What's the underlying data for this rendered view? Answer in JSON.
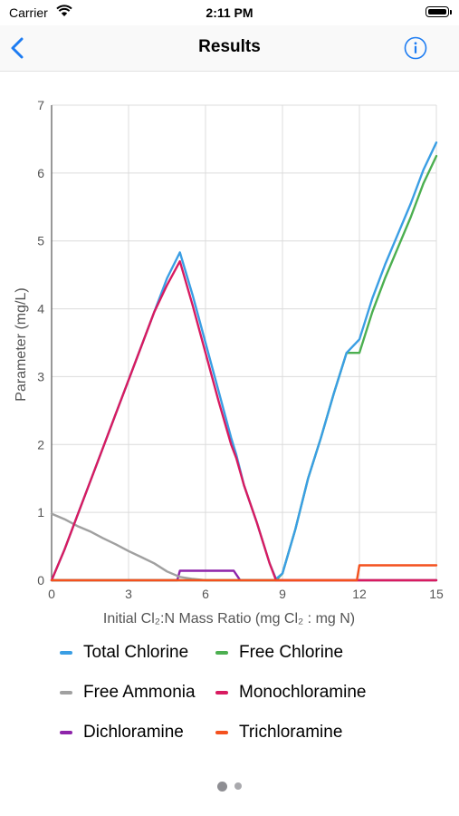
{
  "status_bar": {
    "carrier": "Carrier",
    "time": "2:11 PM"
  },
  "nav": {
    "title": "Results",
    "back_icon": "chevron-left-icon",
    "info_icon": "info-circle-icon",
    "accent": "#1d7cf2"
  },
  "chart_data": {
    "type": "line",
    "title": "",
    "xlabel": "Initial Cl₂:N Mass Ratio (mg Cl₂ : mg N)",
    "ylabel": "Parameter (mg/L)",
    "xlim": [
      0,
      15
    ],
    "ylim": [
      0,
      7
    ],
    "xticks": [
      "0",
      "3",
      "6",
      "9",
      "12",
      "15"
    ],
    "yticks": [
      "0",
      "1",
      "2",
      "3",
      "4",
      "5",
      "6",
      "7"
    ],
    "grid": true,
    "legend": "bottom",
    "series": [
      {
        "name": "Total Chlorine",
        "color": "#3a9ee4",
        "x": [
          0,
          0.5,
          1,
          1.5,
          2,
          2.5,
          3,
          3.5,
          4,
          4.5,
          5,
          5.5,
          6,
          6.5,
          7,
          7.2,
          7.5,
          8,
          8.5,
          8.75,
          9,
          9.5,
          10,
          10.5,
          11,
          11.5,
          12,
          12.5,
          13,
          13.5,
          14,
          14.5,
          15
        ],
        "y": [
          0,
          0.45,
          0.95,
          1.45,
          1.95,
          2.45,
          2.95,
          3.45,
          3.95,
          4.45,
          4.83,
          4.2,
          3.5,
          2.8,
          2.1,
          1.85,
          1.4,
          0.85,
          0.25,
          0.02,
          0.1,
          0.75,
          1.5,
          2.1,
          2.75,
          3.35,
          3.55,
          4.15,
          4.65,
          5.1,
          5.55,
          6.05,
          6.45
        ]
      },
      {
        "name": "Free Chlorine",
        "color": "#4caf50",
        "x": [
          0,
          8.75,
          9,
          9.5,
          10,
          10.5,
          11,
          11.5,
          12,
          12.5,
          13,
          13.5,
          14,
          14.5,
          15
        ],
        "y": [
          0,
          0,
          0.1,
          0.75,
          1.5,
          2.1,
          2.75,
          3.35,
          3.35,
          3.95,
          4.45,
          4.9,
          5.35,
          5.85,
          6.25
        ]
      },
      {
        "name": "Free Ammonia",
        "color": "#a0a0a0",
        "x": [
          0,
          0.5,
          1,
          1.5,
          2,
          2.5,
          3,
          3.5,
          4,
          4.5,
          5,
          5.5,
          6,
          15
        ],
        "y": [
          0.98,
          0.9,
          0.8,
          0.72,
          0.62,
          0.53,
          0.43,
          0.34,
          0.25,
          0.13,
          0.05,
          0.02,
          0.0,
          0
        ]
      },
      {
        "name": "Monochloramine",
        "color": "#d81b60",
        "x": [
          0,
          0.5,
          1,
          1.5,
          2,
          2.5,
          3,
          3.5,
          4,
          4.5,
          5,
          5.5,
          6,
          6.5,
          7,
          7.2,
          7.5,
          8,
          8.5,
          8.75,
          15
        ],
        "y": [
          0,
          0.45,
          0.95,
          1.45,
          1.95,
          2.45,
          2.95,
          3.45,
          3.95,
          4.35,
          4.7,
          4.05,
          3.35,
          2.65,
          2.0,
          1.8,
          1.4,
          0.85,
          0.25,
          0,
          0
        ]
      },
      {
        "name": "Dichloramine",
        "color": "#8e24aa",
        "x": [
          0,
          4.9,
          5.0,
          7.1,
          7.35,
          15
        ],
        "y": [
          0,
          0,
          0.14,
          0.14,
          0,
          0
        ]
      },
      {
        "name": "Trichloramine",
        "color": "#f4511e",
        "x": [
          0,
          11.9,
          12.0,
          15
        ],
        "y": [
          0,
          0,
          0.22,
          0.22
        ]
      }
    ]
  },
  "page_control": {
    "pages": 2,
    "current": 1
  }
}
